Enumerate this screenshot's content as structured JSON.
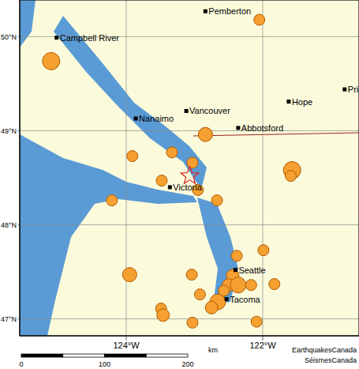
{
  "chart_data": {
    "type": "scatter",
    "xlim": [
      -125.56,
      -120.59
    ],
    "ylim": [
      46.82,
      50.39
    ],
    "xticks": [
      {
        "value": -124,
        "label": "124°W"
      },
      {
        "value": -122,
        "label": "122°W"
      }
    ],
    "yticks": [
      {
        "value": 47,
        "label": "47°N"
      },
      {
        "value": 48,
        "label": "48°N"
      },
      {
        "value": 49,
        "label": "49°N"
      },
      {
        "value": 50,
        "label": "50°N"
      }
    ],
    "grid": true,
    "earthquakes": {
      "color": "#f5a030",
      "marker": "circle",
      "x": [
        -125.1,
        -122.05,
        -123.91,
        -123.33,
        -122.84,
        -123.03,
        -121.57,
        -121.59,
        -123.48,
        -122.95,
        -122.67,
        -124.21,
        -122.38,
        -121.99,
        -123.95,
        -123.04,
        -122.44,
        -122.5,
        -122.36,
        -122.17,
        -121.83,
        -122.57,
        -122.92,
        -122.66,
        -122.75,
        -123.49,
        -123.46,
        -123.03,
        -122.09
      ],
      "y": [
        49.74,
        50.18,
        48.73,
        48.77,
        48.96,
        48.66,
        48.58,
        48.52,
        48.47,
        48.37,
        48.26,
        48.26,
        47.67,
        47.73,
        47.47,
        47.47,
        47.46,
        47.36,
        47.36,
        47.36,
        47.37,
        47.3,
        47.26,
        47.18,
        47.12,
        47.11,
        47.04,
        46.96,
        46.97
      ],
      "magnitude": [
        5.5,
        3.5,
        3.5,
        3.5,
        4.5,
        3.5,
        5.5,
        3.5,
        3.5,
        3.5,
        3.5,
        3.5,
        3.5,
        3.5,
        4.5,
        3.5,
        4,
        4,
        5,
        3.5,
        3.5,
        3.5,
        3.5,
        5,
        4,
        3.5,
        4,
        3.5,
        3.5
      ]
    },
    "epicenter": {
      "x": -123.07,
      "y": 48.52,
      "color": "#e02020",
      "marker": "star"
    },
    "places": {
      "labels": [
        "Pemberton",
        "Campbell River",
        "Nanaimo",
        "Vancouver",
        "Abbotsford",
        "Hope",
        "Pri",
        "Victoria",
        "Seattle",
        "Tacoma"
      ],
      "x": [
        -122.84,
        -125.02,
        -123.86,
        -123.12,
        -122.36,
        -121.62,
        -120.8,
        -123.36,
        -122.4,
        -122.53
      ],
      "y": [
        50.27,
        49.99,
        49.13,
        49.21,
        49.03,
        49.31,
        49.44,
        48.4,
        47.52,
        47.21
      ]
    },
    "scale_bar": {
      "ticks": [
        0,
        100,
        200
      ],
      "unit": "km"
    },
    "credits": [
      "EarthquakesCanada",
      "SéismesCanada"
    ]
  }
}
